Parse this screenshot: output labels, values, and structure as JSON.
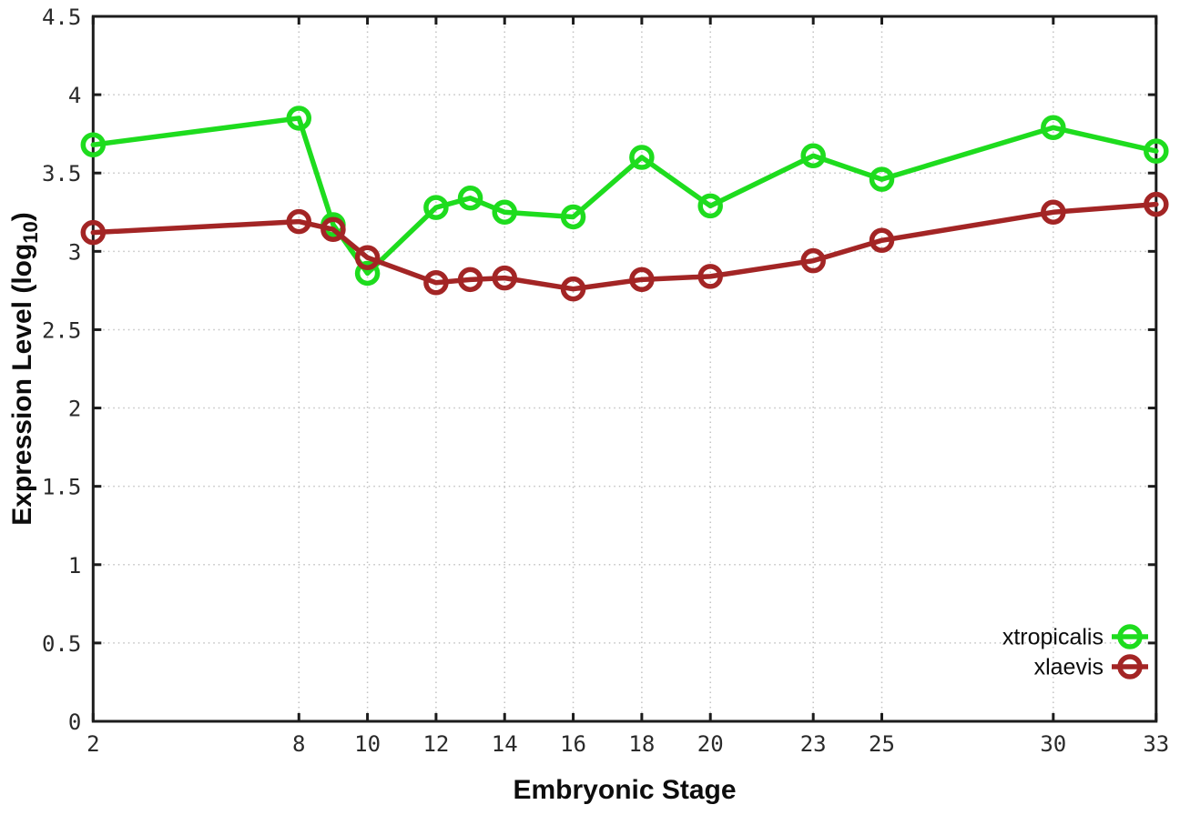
{
  "figure": {
    "background": "#ffffff",
    "border_color": "#1c1c1c",
    "grid_color": "#c2c2c2",
    "tick_label_color": "#2a2a2a"
  },
  "chart_data": {
    "type": "line",
    "title": "",
    "xlabel": "Embryonic Stage",
    "ylabel_main": "Expression Level (log",
    "ylabel_subscript": "10",
    "ylabel_suffix": ")",
    "x": [
      2,
      8,
      9,
      10,
      12,
      13,
      14,
      16,
      18,
      20,
      23,
      25,
      30,
      33
    ],
    "series": [
      {
        "name": "xtropicalis",
        "color": "#1edc1e",
        "marker": "open-circle",
        "values": [
          3.68,
          3.85,
          3.17,
          2.86,
          3.28,
          3.34,
          3.25,
          3.22,
          3.6,
          3.29,
          3.61,
          3.46,
          3.79,
          3.64
        ]
      },
      {
        "name": "xlaevis",
        "color": "#a32525",
        "marker": "open-circle",
        "values": [
          3.12,
          3.19,
          3.14,
          2.96,
          2.8,
          2.82,
          2.83,
          2.76,
          2.82,
          2.84,
          2.94,
          3.07,
          3.25,
          3.3
        ]
      }
    ],
    "xlim": [
      2,
      33
    ],
    "ylim": [
      0,
      4.5
    ],
    "xticks": [
      2,
      8,
      10,
      12,
      14,
      16,
      18,
      20,
      23,
      25,
      30,
      33
    ],
    "xtick_labels": [
      "2",
      "8",
      "10",
      "12",
      "14",
      "16",
      "18",
      "20",
      "23",
      "25",
      "30",
      "33"
    ],
    "yticks": [
      0,
      0.5,
      1,
      1.5,
      2,
      2.5,
      3,
      3.5,
      4,
      4.5
    ],
    "ytick_labels": [
      "0",
      "0.5",
      "1",
      "1.5",
      "2",
      "2.5",
      "3",
      "3.5",
      "4",
      "4.5"
    ],
    "grid": true,
    "grid_style": "dotted",
    "tick_style": "inward-mirrored",
    "legend_position": "bottom-right",
    "legend_entries": [
      "xtropicalis",
      "xlaevis"
    ]
  }
}
